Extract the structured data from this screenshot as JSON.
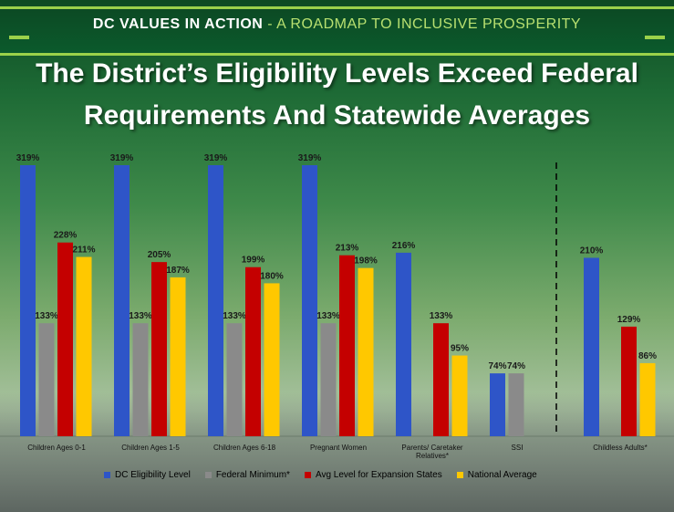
{
  "header": {
    "bold_part": "DC VALUES IN ACTION",
    "separator": " - ",
    "rest_part": "A ROADMAP TO INCLUSIVE PROSPERITY"
  },
  "title_line1": "The District’s Eligibility Levels Exceed Federal",
  "title_line2": "Requirements And Statewide Averages",
  "colors": {
    "dc": "#2e55c8",
    "federal": "#8a8a8a",
    "expansion": "#c40000",
    "national": "#ffc800"
  },
  "chart_data": {
    "type": "bar",
    "title": "The District’s Eligibility Levels Exceed Federal Requirements And Statewide Averages",
    "xlabel": "",
    "ylabel": "",
    "ylim": [
      0,
      319
    ],
    "categories": [
      "Children Ages 0-1",
      "Children Ages 1-5",
      "Children Ages 6-18",
      "Pregnant Women",
      "Parents/ Caretaker Relatives*",
      "SSI",
      "Childless Adults*"
    ],
    "series": [
      {
        "name": "DC Eligibility Level",
        "values": [
          319,
          319,
          319,
          319,
          216,
          74,
          210
        ],
        "labels": [
          "319%",
          "319%",
          "319%",
          "319%",
          "216%",
          "74%",
          "210%"
        ]
      },
      {
        "name": "Federal Minimum*",
        "values": [
          133,
          133,
          133,
          133,
          null,
          74,
          null
        ],
        "labels": [
          "133%",
          "133%",
          "133%",
          "133%",
          "",
          "74%",
          ""
        ]
      },
      {
        "name": "Avg Level for Expansion States",
        "values": [
          228,
          205,
          199,
          213,
          133,
          null,
          129
        ],
        "labels": [
          "228%",
          "205%",
          "199%",
          "213%",
          "133%",
          "",
          "129%"
        ]
      },
      {
        "name": "National Average",
        "values": [
          211,
          187,
          180,
          198,
          95,
          null,
          86
        ],
        "labels": [
          "211%",
          "187%",
          "180%",
          "198%",
          "95%",
          "",
          "86%"
        ]
      }
    ],
    "legend": [
      "DC Eligibility Level",
      "Federal Minimum*",
      "Avg Level for Expansion States",
      "National Average"
    ],
    "legend_position": "bottom",
    "divider": "dashed line before Childless Adults*"
  }
}
